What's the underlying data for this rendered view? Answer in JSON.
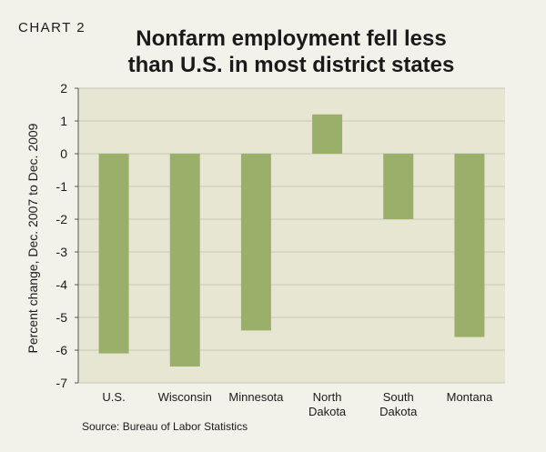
{
  "chart_label": "CHART 2",
  "title": [
    "Nonfarm employment fell less",
    "than U.S. in most district states"
  ],
  "source": "Source: Bureau of Labor Statistics",
  "colors": {
    "background": "#f3f2ea",
    "plot_area": "#e7e6d3",
    "bar": "#9aaf6a",
    "grid": "#c9c8b4"
  },
  "chart_data": {
    "type": "bar",
    "title": "Nonfarm employment fell less than U.S. in most district states",
    "ylabel": "Percent change, Dec. 2007 to Dec. 2009",
    "xlabel": "",
    "categories": [
      [
        "U.S."
      ],
      [
        "Wisconsin"
      ],
      [
        "Minnesota"
      ],
      [
        "North",
        "Dakota"
      ],
      [
        "South",
        "Dakota"
      ],
      [
        "Montana"
      ]
    ],
    "values": [
      -6.1,
      -6.5,
      -5.4,
      1.2,
      -2.0,
      -5.6
    ],
    "ylim": [
      -7,
      2
    ],
    "yticks": [
      2,
      1,
      0,
      -1,
      -2,
      -3,
      -4,
      -5,
      -6,
      -7
    ],
    "grid": true,
    "legend": "none"
  }
}
